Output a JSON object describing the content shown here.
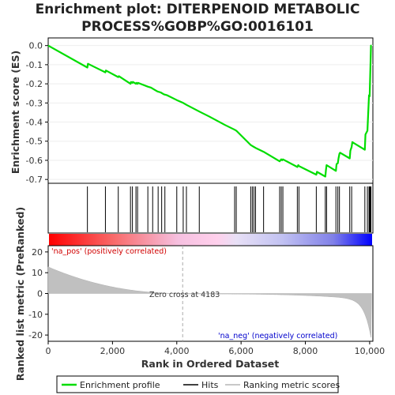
{
  "chart_data": {
    "type": "line",
    "title_lines": [
      "Enrichment plot: DITERPENOID METABOLIC",
      "PROCESS%GOBP%GO:0016101"
    ],
    "es_panel": {
      "ylabel": "Enrichment score (ES)",
      "ylim": [
        -0.72,
        0.04
      ],
      "yticks": [
        0.0,
        -0.1,
        -0.2,
        -0.3,
        -0.4,
        -0.5,
        -0.6,
        -0.7
      ],
      "ytick_labels": [
        "0.0",
        "-0.1",
        "-0.2",
        "-0.3",
        "-0.4",
        "-0.5",
        "-0.6",
        "-0.7"
      ],
      "color": "#00dd00",
      "x": [
        0,
        1220,
        1235,
        1780,
        1795,
        2180,
        2200,
        2560,
        2575,
        2620,
        2635,
        2730,
        2745,
        2780,
        2795,
        3100,
        3200,
        3300,
        3400,
        3500,
        3600,
        3700,
        4000,
        4200,
        4300,
        4700,
        5000,
        5500,
        5800,
        5850,
        6300,
        6350,
        6400,
        6450,
        6700,
        7200,
        7250,
        7280,
        7300,
        7750,
        7780,
        7800,
        8340,
        8360,
        8620,
        8640,
        8660,
        8950,
        8970,
        9010,
        9030,
        9060,
        9080,
        9380,
        9400,
        9440,
        9460,
        9850,
        9870,
        9930,
        9950,
        9980,
        10000,
        10020,
        10040,
        10060
      ],
      "y": [
        0.0,
        -0.115,
        -0.095,
        -0.14,
        -0.13,
        -0.165,
        -0.16,
        -0.2,
        -0.19,
        -0.195,
        -0.19,
        -0.2,
        -0.195,
        -0.2,
        -0.195,
        -0.215,
        -0.22,
        -0.23,
        -0.24,
        -0.245,
        -0.255,
        -0.26,
        -0.285,
        -0.3,
        -0.31,
        -0.345,
        -0.37,
        -0.415,
        -0.44,
        -0.445,
        -0.52,
        -0.525,
        -0.53,
        -0.535,
        -0.555,
        -0.605,
        -0.595,
        -0.6,
        -0.595,
        -0.635,
        -0.625,
        -0.63,
        -0.675,
        -0.66,
        -0.685,
        -0.65,
        -0.625,
        -0.655,
        -0.62,
        -0.615,
        -0.59,
        -0.565,
        -0.56,
        -0.59,
        -0.55,
        -0.53,
        -0.505,
        -0.545,
        -0.465,
        -0.445,
        -0.37,
        -0.26,
        -0.265,
        -0.14,
        0.0,
        0.0
      ]
    },
    "hits_x": [
      1220,
      1780,
      2180,
      2560,
      2620,
      2730,
      2780,
      3100,
      3250,
      3420,
      3530,
      3630,
      4000,
      4200,
      4300,
      4700,
      5800,
      5850,
      6300,
      6350,
      6400,
      6450,
      6700,
      7200,
      7250,
      7300,
      7750,
      7800,
      8340,
      8620,
      8660,
      8950,
      9010,
      9060,
      9380,
      9440,
      9850,
      9930,
      9980,
      10000,
      10020,
      10040
    ],
    "rank_panel": {
      "ylabel": "Ranked list metric (PreRanked)",
      "ylim": [
        -23,
        23
      ],
      "yticks": [
        20,
        10,
        0,
        -10,
        -20
      ],
      "ytick_labels": [
        "20",
        "10",
        "0",
        "-10",
        "-20"
      ],
      "pos_label": "'na_pos' (positively correlated)",
      "neg_label": "'na_neg' (negatively correlated)",
      "zero_cross_label": "Zero cross at 4183",
      "zero_cross_x": 4183
    },
    "xlabel": "Rank in Ordered Dataset",
    "xlim": [
      0,
      10100
    ],
    "xticks": [
      0,
      2000,
      4000,
      6000,
      8000,
      10000
    ],
    "xtick_labels": [
      "0",
      "2,000",
      "4,000",
      "6,000",
      "8,000",
      "10,000"
    ],
    "legend": {
      "placement": "bottom",
      "items": [
        {
          "label": "Enrichment profile",
          "color": "#00dd00"
        },
        {
          "label": "Hits",
          "color": "#000000"
        },
        {
          "label": "Ranking metric scores",
          "color": "#c8c8c8"
        }
      ]
    }
  }
}
